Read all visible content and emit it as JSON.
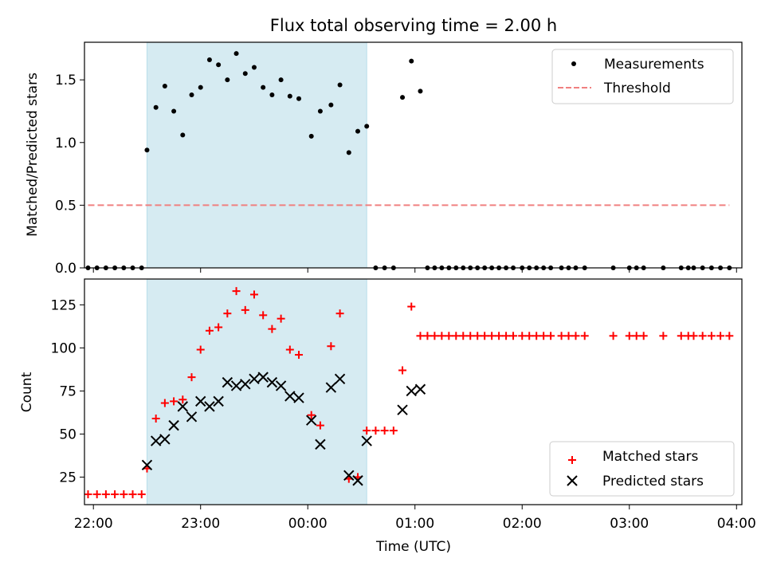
{
  "chart_data": [
    {
      "type": "scatter",
      "title": "Flux total observing time = 2.00 h",
      "xlabel": "",
      "ylabel": "Matched/Predicted stars",
      "xlim": [
        "21:55",
        "04:03"
      ],
      "ylim": [
        0,
        1.8
      ],
      "yticks": [
        0.0,
        0.5,
        1.0,
        1.5
      ],
      "ytick_labels": [
        "0.0",
        "0.5",
        "1.0",
        "1.5"
      ],
      "shaded_span": {
        "start": "22:30",
        "end": "00:33",
        "color": "#add8e6"
      },
      "legend_position": "top-right",
      "series": [
        {
          "name": "Measurements",
          "marker": "dot",
          "color": "#000000",
          "points": [
            {
              "x": "21:57",
              "y": 0
            },
            {
              "x": "22:02",
              "y": 0
            },
            {
              "x": "22:07",
              "y": 0
            },
            {
              "x": "22:12",
              "y": 0
            },
            {
              "x": "22:17",
              "y": 0
            },
            {
              "x": "22:22",
              "y": 0
            },
            {
              "x": "22:27",
              "y": 0
            },
            {
              "x": "22:30",
              "y": 0.94
            },
            {
              "x": "22:35",
              "y": 1.28
            },
            {
              "x": "22:40",
              "y": 1.45
            },
            {
              "x": "22:45",
              "y": 1.25
            },
            {
              "x": "22:50",
              "y": 1.06
            },
            {
              "x": "22:55",
              "y": 1.38
            },
            {
              "x": "23:00",
              "y": 1.44
            },
            {
              "x": "23:05",
              "y": 1.66
            },
            {
              "x": "23:10",
              "y": 1.62
            },
            {
              "x": "23:15",
              "y": 1.5
            },
            {
              "x": "23:20",
              "y": 1.71
            },
            {
              "x": "23:25",
              "y": 1.55
            },
            {
              "x": "23:30",
              "y": 1.6
            },
            {
              "x": "23:35",
              "y": 1.44
            },
            {
              "x": "23:40",
              "y": 1.38
            },
            {
              "x": "23:45",
              "y": 1.5
            },
            {
              "x": "23:50",
              "y": 1.37
            },
            {
              "x": "23:55",
              "y": 1.35
            },
            {
              "x": "00:02",
              "y": 1.05
            },
            {
              "x": "00:07",
              "y": 1.25
            },
            {
              "x": "00:13",
              "y": 1.3
            },
            {
              "x": "00:18",
              "y": 1.46
            },
            {
              "x": "00:23",
              "y": 0.92
            },
            {
              "x": "00:28",
              "y": 1.09
            },
            {
              "x": "00:33",
              "y": 1.13
            },
            {
              "x": "00:38",
              "y": 0
            },
            {
              "x": "00:43",
              "y": 0
            },
            {
              "x": "00:48",
              "y": 0
            },
            {
              "x": "00:53",
              "y": 1.36
            },
            {
              "x": "00:58",
              "y": 1.65
            },
            {
              "x": "01:03",
              "y": 1.41
            },
            {
              "x": "01:07",
              "y": 0
            },
            {
              "x": "01:11",
              "y": 0
            },
            {
              "x": "01:15",
              "y": 0
            },
            {
              "x": "01:19",
              "y": 0
            },
            {
              "x": "01:23",
              "y": 0
            },
            {
              "x": "01:27",
              "y": 0
            },
            {
              "x": "01:31",
              "y": 0
            },
            {
              "x": "01:35",
              "y": 0
            },
            {
              "x": "01:39",
              "y": 0
            },
            {
              "x": "01:43",
              "y": 0
            },
            {
              "x": "01:47",
              "y": 0
            },
            {
              "x": "01:51",
              "y": 0
            },
            {
              "x": "01:55",
              "y": 0
            },
            {
              "x": "02:00",
              "y": 0
            },
            {
              "x": "02:04",
              "y": 0
            },
            {
              "x": "02:08",
              "y": 0
            },
            {
              "x": "02:12",
              "y": 0
            },
            {
              "x": "02:16",
              "y": 0
            },
            {
              "x": "02:22",
              "y": 0
            },
            {
              "x": "02:26",
              "y": 0
            },
            {
              "x": "02:30",
              "y": 0
            },
            {
              "x": "02:35",
              "y": 0
            },
            {
              "x": "02:51",
              "y": 0
            },
            {
              "x": "03:00",
              "y": 0
            },
            {
              "x": "03:04",
              "y": 0
            },
            {
              "x": "03:08",
              "y": 0
            },
            {
              "x": "03:19",
              "y": 0
            },
            {
              "x": "03:29",
              "y": 0
            },
            {
              "x": "03:33",
              "y": 0
            },
            {
              "x": "03:36",
              "y": 0
            },
            {
              "x": "03:41",
              "y": 0
            },
            {
              "x": "03:46",
              "y": 0
            },
            {
              "x": "03:51",
              "y": 0
            },
            {
              "x": "03:56",
              "y": 0
            }
          ]
        },
        {
          "name": "Threshold",
          "marker": "dashed-line",
          "color": "#f08080",
          "points": [
            {
              "x": "21:57",
              "y": 0.5
            },
            {
              "x": "03:56",
              "y": 0.5
            }
          ]
        }
      ]
    },
    {
      "type": "scatter",
      "title": "",
      "xlabel": "Time (UTC)",
      "ylabel": "Count",
      "xlim": [
        "21:55",
        "04:03"
      ],
      "ylim": [
        9,
        140
      ],
      "yticks": [
        25,
        50,
        75,
        100,
        125
      ],
      "ytick_labels": [
        "25",
        "50",
        "75",
        "100",
        "125"
      ],
      "xticks": [
        "22:00",
        "23:00",
        "00:00",
        "01:00",
        "02:00",
        "03:00",
        "04:00"
      ],
      "shaded_span": {
        "start": "22:30",
        "end": "00:33",
        "color": "#add8e6"
      },
      "legend_position": "bottom-right",
      "series": [
        {
          "name": "Matched stars",
          "marker": "plus",
          "color": "#ff0000",
          "points": [
            {
              "x": "21:57",
              "y": 15
            },
            {
              "x": "22:02",
              "y": 15
            },
            {
              "x": "22:07",
              "y": 15
            },
            {
              "x": "22:12",
              "y": 15
            },
            {
              "x": "22:17",
              "y": 15
            },
            {
              "x": "22:22",
              "y": 15
            },
            {
              "x": "22:27",
              "y": 15
            },
            {
              "x": "22:30",
              "y": 30
            },
            {
              "x": "22:35",
              "y": 59
            },
            {
              "x": "22:40",
              "y": 68
            },
            {
              "x": "22:45",
              "y": 69
            },
            {
              "x": "22:50",
              "y": 70
            },
            {
              "x": "22:55",
              "y": 83
            },
            {
              "x": "23:00",
              "y": 99
            },
            {
              "x": "23:05",
              "y": 110
            },
            {
              "x": "23:10",
              "y": 112
            },
            {
              "x": "23:15",
              "y": 120
            },
            {
              "x": "23:20",
              "y": 133
            },
            {
              "x": "23:25",
              "y": 122
            },
            {
              "x": "23:30",
              "y": 131
            },
            {
              "x": "23:35",
              "y": 119
            },
            {
              "x": "23:40",
              "y": 111
            },
            {
              "x": "23:45",
              "y": 117
            },
            {
              "x": "23:50",
              "y": 99
            },
            {
              "x": "23:55",
              "y": 96
            },
            {
              "x": "00:02",
              "y": 61
            },
            {
              "x": "00:07",
              "y": 55
            },
            {
              "x": "00:13",
              "y": 101
            },
            {
              "x": "00:18",
              "y": 120
            },
            {
              "x": "00:23",
              "y": 24
            },
            {
              "x": "00:28",
              "y": 25
            },
            {
              "x": "00:33",
              "y": 52
            },
            {
              "x": "00:38",
              "y": 52
            },
            {
              "x": "00:43",
              "y": 52
            },
            {
              "x": "00:48",
              "y": 52
            },
            {
              "x": "00:53",
              "y": 87
            },
            {
              "x": "00:58",
              "y": 124
            },
            {
              "x": "01:03",
              "y": 107
            },
            {
              "x": "01:07",
              "y": 107
            },
            {
              "x": "01:11",
              "y": 107
            },
            {
              "x": "01:15",
              "y": 107
            },
            {
              "x": "01:19",
              "y": 107
            },
            {
              "x": "01:23",
              "y": 107
            },
            {
              "x": "01:27",
              "y": 107
            },
            {
              "x": "01:31",
              "y": 107
            },
            {
              "x": "01:35",
              "y": 107
            },
            {
              "x": "01:39",
              "y": 107
            },
            {
              "x": "01:43",
              "y": 107
            },
            {
              "x": "01:47",
              "y": 107
            },
            {
              "x": "01:51",
              "y": 107
            },
            {
              "x": "01:55",
              "y": 107
            },
            {
              "x": "02:00",
              "y": 107
            },
            {
              "x": "02:04",
              "y": 107
            },
            {
              "x": "02:08",
              "y": 107
            },
            {
              "x": "02:12",
              "y": 107
            },
            {
              "x": "02:16",
              "y": 107
            },
            {
              "x": "02:22",
              "y": 107
            },
            {
              "x": "02:26",
              "y": 107
            },
            {
              "x": "02:30",
              "y": 107
            },
            {
              "x": "02:35",
              "y": 107
            },
            {
              "x": "02:51",
              "y": 107
            },
            {
              "x": "03:00",
              "y": 107
            },
            {
              "x": "03:04",
              "y": 107
            },
            {
              "x": "03:08",
              "y": 107
            },
            {
              "x": "03:19",
              "y": 107
            },
            {
              "x": "03:29",
              "y": 107
            },
            {
              "x": "03:33",
              "y": 107
            },
            {
              "x": "03:36",
              "y": 107
            },
            {
              "x": "03:41",
              "y": 107
            },
            {
              "x": "03:46",
              "y": 107
            },
            {
              "x": "03:51",
              "y": 107
            },
            {
              "x": "03:56",
              "y": 107
            }
          ]
        },
        {
          "name": "Predicted stars",
          "marker": "x",
          "color": "#000000",
          "points": [
            {
              "x": "22:30",
              "y": 32
            },
            {
              "x": "22:35",
              "y": 46
            },
            {
              "x": "22:40",
              "y": 47
            },
            {
              "x": "22:45",
              "y": 55
            },
            {
              "x": "22:50",
              "y": 66
            },
            {
              "x": "22:55",
              "y": 60
            },
            {
              "x": "23:00",
              "y": 69
            },
            {
              "x": "23:05",
              "y": 66
            },
            {
              "x": "23:10",
              "y": 69
            },
            {
              "x": "23:15",
              "y": 80
            },
            {
              "x": "23:20",
              "y": 78
            },
            {
              "x": "23:25",
              "y": 79
            },
            {
              "x": "23:30",
              "y": 82
            },
            {
              "x": "23:35",
              "y": 83
            },
            {
              "x": "23:40",
              "y": 80
            },
            {
              "x": "23:45",
              "y": 78
            },
            {
              "x": "23:50",
              "y": 72
            },
            {
              "x": "23:55",
              "y": 71
            },
            {
              "x": "00:02",
              "y": 58
            },
            {
              "x": "00:07",
              "y": 44
            },
            {
              "x": "00:13",
              "y": 77
            },
            {
              "x": "00:18",
              "y": 82
            },
            {
              "x": "00:23",
              "y": 26
            },
            {
              "x": "00:28",
              "y": 23
            },
            {
              "x": "00:33",
              "y": 46
            },
            {
              "x": "00:53",
              "y": 64
            },
            {
              "x": "00:58",
              "y": 75
            },
            {
              "x": "01:03",
              "y": 76
            }
          ]
        }
      ]
    }
  ]
}
